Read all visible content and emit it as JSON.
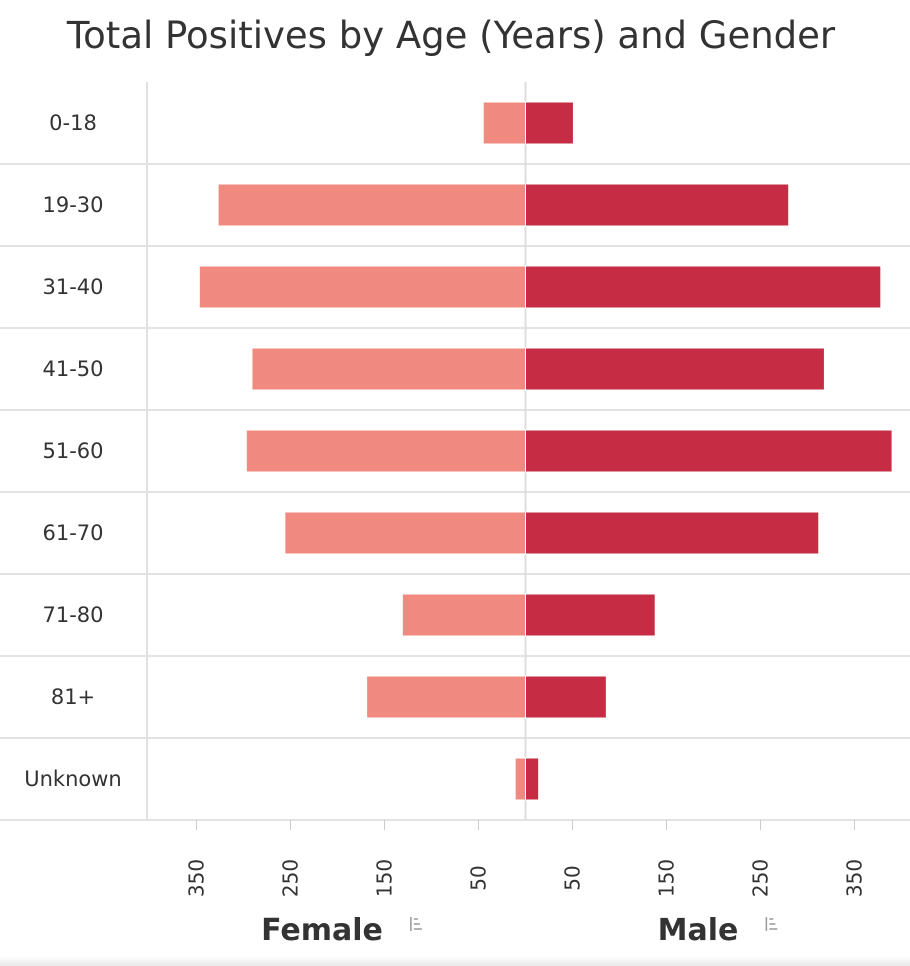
{
  "chart_data": {
    "type": "bar",
    "orientation": "horizontal-diverging",
    "title": "Total Positives by Age (Years) and Gender",
    "categories": [
      "0-18",
      "19-30",
      "31-40",
      "41-50",
      "51-60",
      "61-70",
      "71-80",
      "81+",
      "Unknown"
    ],
    "series": [
      {
        "name": "Female",
        "side": "left",
        "color": "#f08a80",
        "values": [
          45,
          327,
          347,
          291,
          297,
          256,
          131,
          169,
          11
        ]
      },
      {
        "name": "Male",
        "side": "right",
        "color": "#c62c43",
        "values": [
          51,
          280,
          378,
          318,
          390,
          312,
          138,
          86,
          14
        ]
      }
    ],
    "xlim": [
      -400,
      400
    ],
    "ticks": {
      "female": [
        "350",
        "250",
        "150",
        "50"
      ],
      "male": [
        "50",
        "150",
        "250",
        "350"
      ]
    },
    "legend_placement": "bottom",
    "grid": true
  }
}
